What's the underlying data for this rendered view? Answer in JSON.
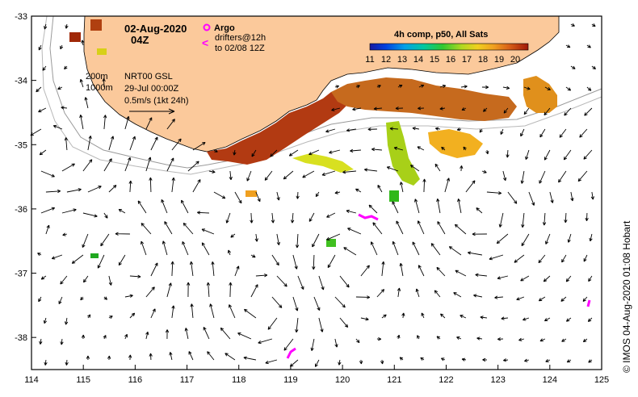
{
  "header": {
    "date": "02-Aug-2020",
    "time": "04Z"
  },
  "legend": {
    "argo_label": "Argo",
    "drifters_label": "drifters@12h",
    "drifters_range": "to 02/08 12Z",
    "argo_color": "#ff00ff",
    "drifter_color": "#ff00ff"
  },
  "depth_contours": {
    "shallow": "200m",
    "deep": "1000m"
  },
  "ssh_info": {
    "product": "NRT00 GSL",
    "timestamp": "29-Jul 00:00Z",
    "scale": "0.5m/s (1kt 24h)"
  },
  "colorbar": {
    "title": "4h comp, p50, All Sats",
    "ticks": [
      "11",
      "12",
      "13",
      "14",
      "15",
      "16",
      "17",
      "18",
      "19",
      "20"
    ],
    "min": 11,
    "max": 20.8
  },
  "axes": {
    "x_ticks": [
      "114",
      "115",
      "116",
      "117",
      "118",
      "119",
      "120",
      "121",
      "122",
      "123",
      "124",
      "125"
    ],
    "y_ticks": [
      "-33",
      "-34",
      "-35",
      "-36",
      "-37",
      "-38"
    ],
    "lon_range": [
      114,
      125
    ],
    "lat_range": [
      -38.5,
      -33
    ]
  },
  "credit": "© IMOS 04-Aug-2020 01:08 Hobart",
  "colors": {
    "land": "#fbc99b",
    "frame": "#000000",
    "contour": "#9a9a9a"
  }
}
